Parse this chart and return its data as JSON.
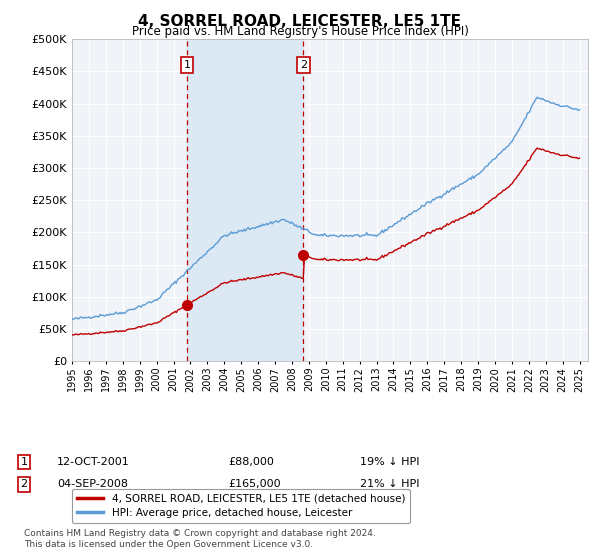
{
  "title": "4, SORREL ROAD, LEICESTER, LE5 1TE",
  "subtitle": "Price paid vs. HM Land Registry's House Price Index (HPI)",
  "ytick_values": [
    0,
    50000,
    100000,
    150000,
    200000,
    250000,
    300000,
    350000,
    400000,
    450000,
    500000
  ],
  "ylim": [
    0,
    500000
  ],
  "xlim_start": 1995.0,
  "xlim_end": 2025.5,
  "purchase1_date": 2001.79,
  "purchase1_price": 88000,
  "purchase1_label": "1",
  "purchase2_date": 2008.67,
  "purchase2_price": 165000,
  "purchase2_label": "2",
  "hpi_color": "#5b9bd5",
  "price_color": "#c00000",
  "vline_color": "#c00000",
  "shade_color": "#dce9f5",
  "legend_label1": "4, SORREL ROAD, LEICESTER, LE5 1TE (detached house)",
  "legend_label2": "HPI: Average price, detached house, Leicester",
  "annotation1": "12-OCT-2001",
  "annotation1_price": "£88,000",
  "annotation1_hpi": "19% ↓ HPI",
  "annotation2": "04-SEP-2008",
  "annotation2_price": "£165,000",
  "annotation2_hpi": "21% ↓ HPI",
  "footnote": "Contains HM Land Registry data © Crown copyright and database right 2024.\nThis data is licensed under the Open Government Licence v3.0.",
  "background_color": "#ffffff",
  "grid_color": "#c8d8e8",
  "label_box_color": "#c00000"
}
